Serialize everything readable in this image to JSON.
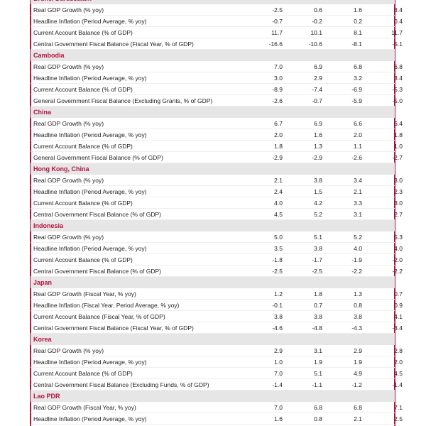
{
  "sections": [
    {
      "name": "Brunei Darussalam",
      "rows": [
        {
          "label": "Real GDP Growth (% yoy)",
          "values": [
            "-2.5",
            "0.6",
            "1.6",
            "3.4"
          ]
        },
        {
          "label": "Headline Inflation (Period Average, % yoy)",
          "values": [
            "-0.7",
            "-0.2",
            "0.2",
            "0.4"
          ]
        },
        {
          "label": "Current Account Balance (% of GDP)",
          "values": [
            "11.7",
            "10.1",
            "8.1",
            "11.7"
          ]
        },
        {
          "label": "Central Government Fiscal Balance (Fiscal Year, % of GDP)",
          "values": [
            "-16.6",
            "-10.6",
            "-8.1",
            "-5.1"
          ]
        }
      ]
    },
    {
      "name": "Cambodia",
      "rows": [
        {
          "label": "Real GDP Growth (% yoy)",
          "values": [
            "7.0",
            "6.9",
            "6.8",
            "6.8"
          ]
        },
        {
          "label": "Headline Inflation (Period Average, % yoy)",
          "values": [
            "3.0",
            "2.9",
            "3.2",
            "3.4"
          ]
        },
        {
          "label": "Current Account Balance (% of GDP)",
          "values": [
            "-8.9",
            "-7.4",
            "-6.9",
            "-5.3"
          ]
        },
        {
          "label": "General Government Fiscal Balance (Excluding Grants, % of GDP)",
          "values": [
            "-2.6",
            "-0.7",
            "-5.9",
            "-5.0"
          ]
        }
      ]
    },
    {
      "name": "China",
      "rows": [
        {
          "label": "Real GDP Growth (% yoy)",
          "values": [
            "6.7",
            "6.9",
            "6.6",
            "6.4"
          ]
        },
        {
          "label": "Headline Inflation (Period Average, % yoy)",
          "values": [
            "2.0",
            "1.6",
            "2.0",
            "1.8"
          ]
        },
        {
          "label": "Current Account Balance (% of GDP)",
          "values": [
            "1.8",
            "1.3",
            "1.1",
            "1.0"
          ]
        },
        {
          "label": "General Government Fiscal Balance (% of GDP)",
          "values": [
            "-2.9",
            "-2.9",
            "-2.6",
            "-2.7"
          ]
        }
      ]
    },
    {
      "name": "Hong Kong, China",
      "rows": [
        {
          "label": "Real GDP Growth (% yoy)",
          "values": [
            "2.1",
            "3.8",
            "3.4",
            "3.0"
          ]
        },
        {
          "label": "Headline Inflation (Period Average, % yoy)",
          "values": [
            "2.4",
            "1.5",
            "2.1",
            "2.3"
          ]
        },
        {
          "label": "Current Account Balance (% of GDP)",
          "values": [
            "4.0",
            "4.2",
            "3.3",
            "3.0"
          ]
        },
        {
          "label": "Central Government Fiscal Balance (% of GDP)",
          "values": [
            "4.5",
            "5.2",
            "3.1",
            "2.7"
          ]
        }
      ]
    },
    {
      "name": "Indonesia",
      "rows": [
        {
          "label": "Real GDP Growth (% yoy)",
          "values": [
            "5.0",
            "5.1",
            "5.2",
            "5.3"
          ]
        },
        {
          "label": "Headline Inflation (Period Average, % yoy)",
          "values": [
            "3.5",
            "3.8",
            "4.0",
            "4.0"
          ]
        },
        {
          "label": "Current Account Balance (% of GDP)",
          "values": [
            "-1.8",
            "-1.7",
            "-1.9",
            "-2.0"
          ]
        },
        {
          "label": "Central Government Fiscal Balance (% of GDP)",
          "values": [
            "-2.5",
            "-2.5",
            "-2.2",
            "-2.2"
          ]
        }
      ]
    },
    {
      "name": "Japan",
      "rows": [
        {
          "label": "Real GDP Growth (Fiscal Year, % yoy)",
          "values": [
            "1.2",
            "1.8",
            "1.3",
            "0.7"
          ]
        },
        {
          "label": "Headline Inflation (Fiscal Year, Period Average, % yoy)",
          "values": [
            "-0.1",
            "0.7",
            "0.8",
            "0.9"
          ]
        },
        {
          "label": "Current Account Balance (Fiscal Year, % of GDP)",
          "values": [
            "3.8",
            "3.8",
            "3.8",
            "4.1"
          ]
        },
        {
          "label": "Central Government Fiscal Balance (Fiscal Year, % of GDP)",
          "values": [
            "-4.6",
            "-4.8",
            "-4.3",
            "-3.4"
          ]
        }
      ]
    },
    {
      "name": "Korea",
      "rows": [
        {
          "label": "Real GDP Growth (% yoy)",
          "values": [
            "2.9",
            "3.1",
            "2.9",
            "2.8"
          ]
        },
        {
          "label": "Headline Inflation (Period Average, % yoy)",
          "values": [
            "1.0",
            "1.9",
            "1.9",
            "2.0"
          ]
        },
        {
          "label": "Current Account Balance (% of GDP)",
          "values": [
            "7.0",
            "5.1",
            "4.9",
            "4.5"
          ]
        },
        {
          "label": "Central Government Fiscal Balance (Excluding Funds, % of GDP)",
          "values": [
            "-1.4",
            "-1.1",
            "-1.2",
            "-1.4"
          ]
        }
      ]
    },
    {
      "name": "Lao PDR",
      "rows": [
        {
          "label": "Real GDP Growth (Fiscal Year, % yoy)",
          "values": [
            "7.0",
            "6.8",
            "6.8",
            "7.1"
          ]
        },
        {
          "label": "Headline Inflation (Period Average, % yoy)",
          "values": [
            "1.6",
            "0.8",
            "2.1",
            "2.5"
          ]
        }
      ]
    }
  ]
}
